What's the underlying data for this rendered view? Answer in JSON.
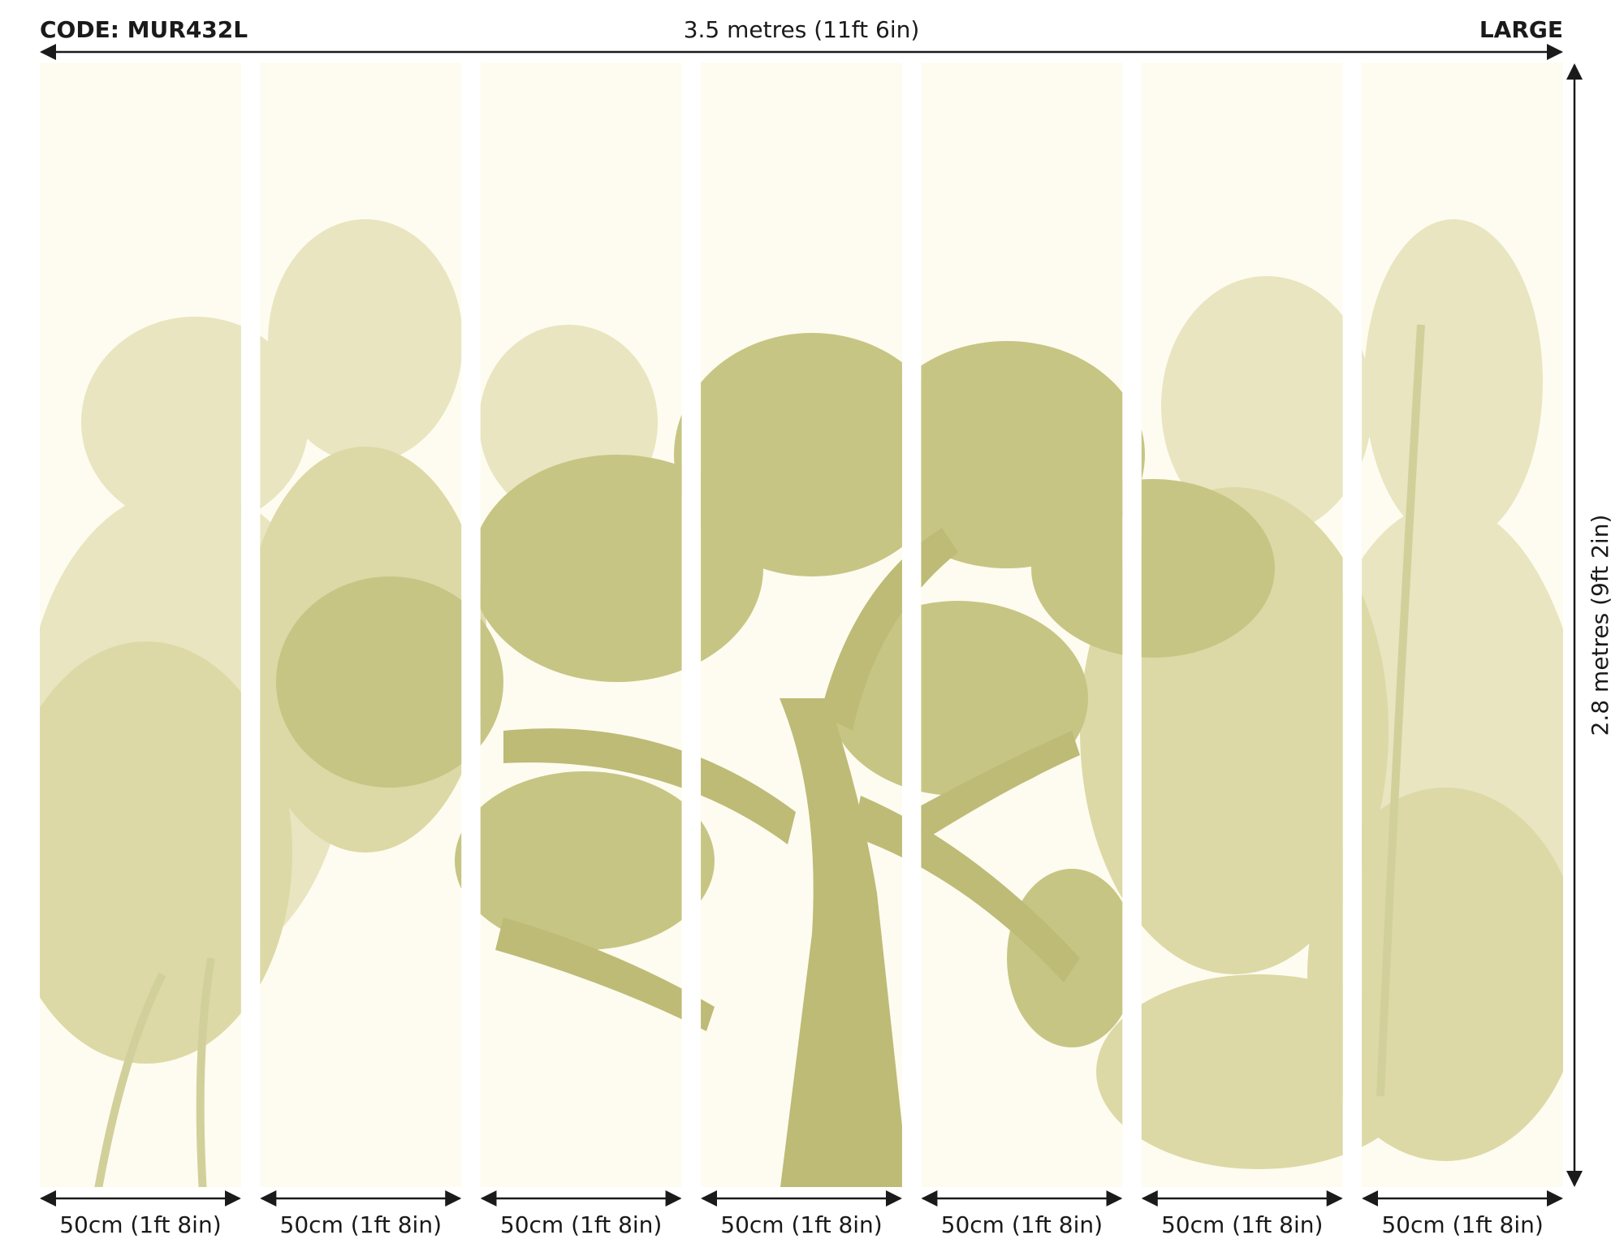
{
  "header": {
    "code": "CODE: MUR432L",
    "width_label": "3.5 metres (11ft 6in)",
    "size": "LARGE"
  },
  "height_label": "2.8 metres (9ft 2in)",
  "panels": [
    {
      "label": "50cm (1ft 8in)"
    },
    {
      "label": "50cm (1ft 8in)"
    },
    {
      "label": "50cm (1ft 8in)"
    },
    {
      "label": "50cm (1ft 8in)"
    },
    {
      "label": "50cm (1ft 8in)"
    },
    {
      "label": "50cm (1ft 8in)"
    },
    {
      "label": "50cm (1ft 8in)"
    }
  ]
}
